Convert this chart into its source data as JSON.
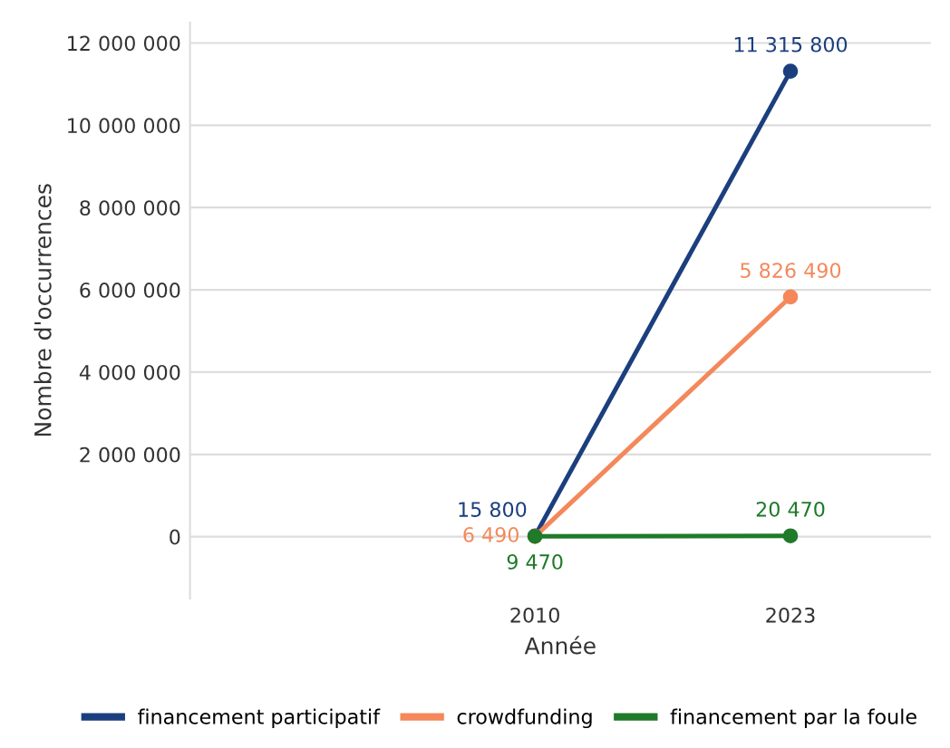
{
  "chart_data": {
    "type": "line",
    "xlabel": "Année",
    "ylabel": "Nombre d'occurrences",
    "categories": [
      "2010",
      "2023"
    ],
    "series": [
      {
        "name": "financement participatif",
        "color": "#1b3f7e",
        "values": [
          15800,
          11315800
        ],
        "value_labels": [
          "15 800",
          "11 315 800"
        ]
      },
      {
        "name": "crowdfunding",
        "color": "#f4885a",
        "values": [
          6490,
          5826490
        ],
        "value_labels": [
          "6 490",
          "5 826 490"
        ]
      },
      {
        "name": "financement par la foule",
        "color": "#1f7a2a",
        "values": [
          9470,
          20470
        ],
        "value_labels": [
          "9 470",
          "20 470"
        ]
      }
    ],
    "ylim": [
      -1500000,
      12500000
    ],
    "yticks": [
      {
        "value": 0,
        "label": "0"
      },
      {
        "value": 2000000,
        "label": "2 000 000"
      },
      {
        "value": 4000000,
        "label": "4 000 000"
      },
      {
        "value": 6000000,
        "label": "6 000 000"
      },
      {
        "value": 8000000,
        "label": "8 000 000"
      },
      {
        "value": 10000000,
        "label": "10 000 000"
      },
      {
        "value": 12000000,
        "label": "12 000 000"
      }
    ],
    "grid": "y",
    "legend": "bottom",
    "marker": "circle",
    "line_style": "solid"
  }
}
